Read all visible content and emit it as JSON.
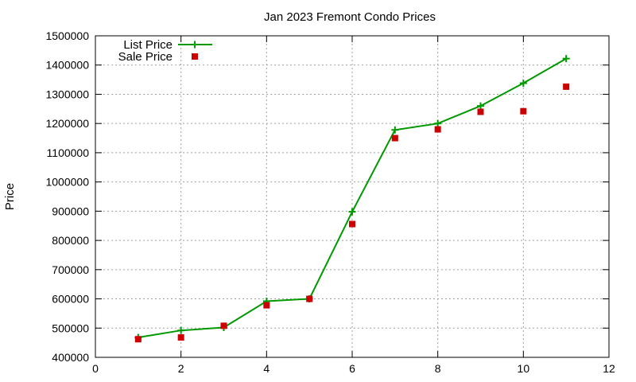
{
  "chart_data": {
    "type": "line",
    "title": "Jan 2023 Fremont Condo Prices",
    "xlabel": "",
    "ylabel": "Price",
    "xlim": [
      0,
      12
    ],
    "ylim": [
      400000,
      1500000
    ],
    "xticks": [
      0,
      2,
      4,
      6,
      8,
      10,
      12
    ],
    "yticks": [
      400000,
      500000,
      600000,
      700000,
      800000,
      900000,
      1000000,
      1100000,
      1200000,
      1300000,
      1400000,
      1500000
    ],
    "grid": true,
    "legend_position": "top-left",
    "series": [
      {
        "name": "List Price",
        "style": "lines+points",
        "marker": "plus",
        "color": "#009900",
        "x": [
          1,
          2,
          3,
          4,
          5,
          6,
          7,
          8,
          9,
          10,
          11
        ],
        "y": [
          468000,
          492000,
          502000,
          592000,
          600000,
          898000,
          1178000,
          1200000,
          1260000,
          1338000,
          1422000
        ]
      },
      {
        "name": "Sale Price",
        "style": "points",
        "marker": "square",
        "color": "#cc0000",
        "x": [
          1,
          2,
          3,
          4,
          5,
          6,
          7,
          8,
          9,
          10,
          11
        ],
        "y": [
          462000,
          468000,
          508000,
          578000,
          600000,
          856000,
          1150000,
          1180000,
          1240000,
          1242000,
          1326000
        ]
      }
    ]
  }
}
